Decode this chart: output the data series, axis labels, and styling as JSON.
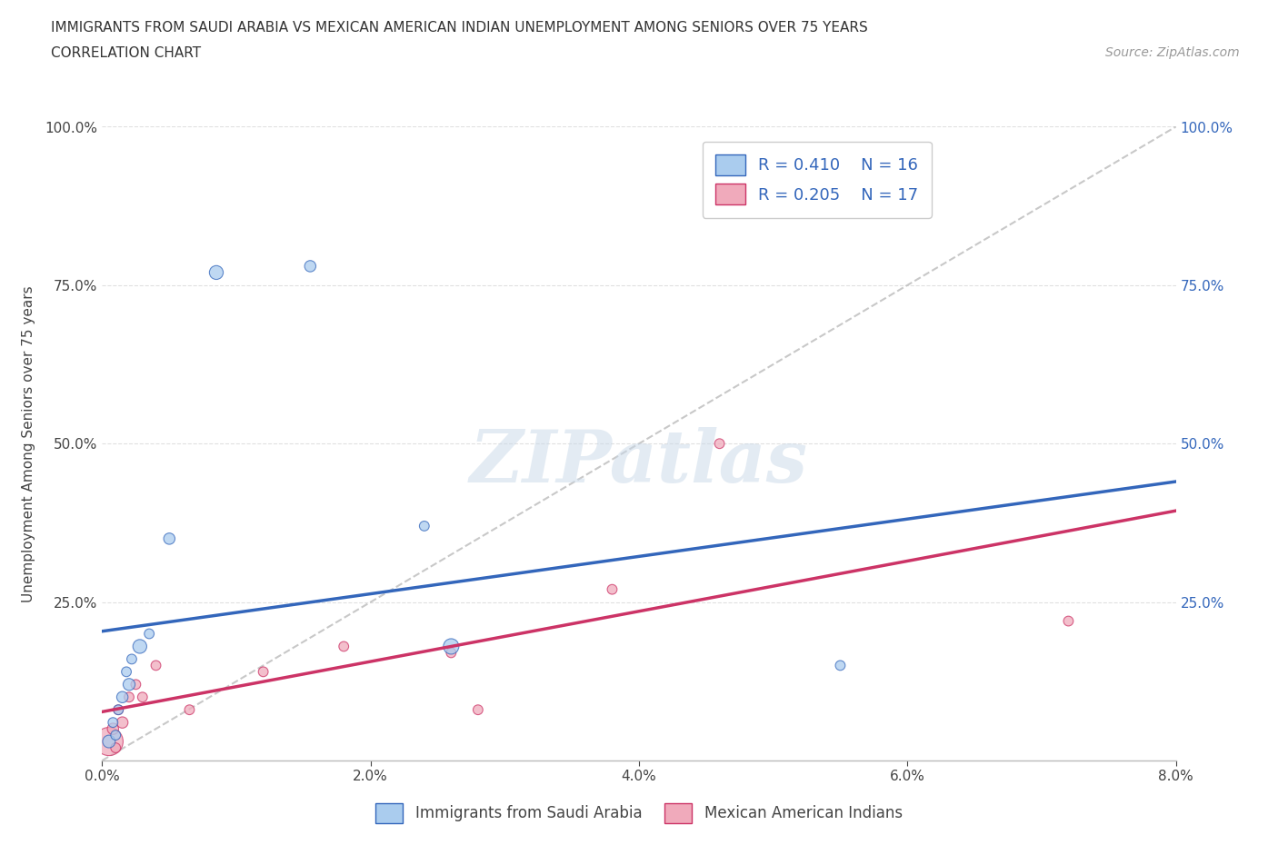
{
  "title_line1": "IMMIGRANTS FROM SAUDI ARABIA VS MEXICAN AMERICAN INDIAN UNEMPLOYMENT AMONG SENIORS OVER 75 YEARS",
  "title_line2": "CORRELATION CHART",
  "source": "Source: ZipAtlas.com",
  "xlabel_blue": "Immigrants from Saudi Arabia",
  "xlabel_pink": "Mexican American Indians",
  "ylabel": "Unemployment Among Seniors over 75 years",
  "r_blue": 0.41,
  "n_blue": 16,
  "r_pink": 0.205,
  "n_pink": 17,
  "color_blue": "#aaccee",
  "color_blue_line": "#3366bb",
  "color_pink": "#f0aabb",
  "color_pink_line": "#cc3366",
  "color_diag": "#bbbbbb",
  "xlim": [
    0.0,
    8.0
  ],
  "ylim": [
    0.0,
    100.0
  ],
  "xticks": [
    0.0,
    2.0,
    4.0,
    6.0,
    8.0
  ],
  "yticks": [
    0.0,
    25.0,
    50.0,
    75.0,
    100.0
  ],
  "blue_x": [
    0.05,
    0.08,
    0.1,
    0.12,
    0.15,
    0.18,
    0.2,
    0.22,
    0.28,
    0.35,
    0.5,
    0.85,
    1.55,
    2.4,
    2.6,
    5.5
  ],
  "blue_y": [
    3,
    6,
    4,
    8,
    10,
    14,
    12,
    16,
    18,
    20,
    35,
    77,
    78,
    37,
    18,
    15
  ],
  "blue_sizes": [
    100,
    60,
    60,
    60,
    80,
    60,
    90,
    60,
    120,
    60,
    80,
    120,
    80,
    60,
    150,
    60
  ],
  "pink_x": [
    0.05,
    0.08,
    0.1,
    0.12,
    0.15,
    0.2,
    0.25,
    0.3,
    0.4,
    0.65,
    1.2,
    1.8,
    2.6,
    2.8,
    3.8,
    4.6,
    7.2
  ],
  "pink_y": [
    3,
    5,
    2,
    8,
    6,
    10,
    12,
    10,
    15,
    8,
    14,
    18,
    17,
    8,
    27,
    50,
    22
  ],
  "pink_sizes": [
    500,
    80,
    60,
    60,
    80,
    60,
    60,
    60,
    60,
    60,
    60,
    60,
    60,
    60,
    60,
    60,
    60
  ],
  "watermark_text": "ZIPatlas",
  "background_color": "#ffffff",
  "grid_color": "#e0e0e0",
  "right_axis_color": "#3366bb"
}
